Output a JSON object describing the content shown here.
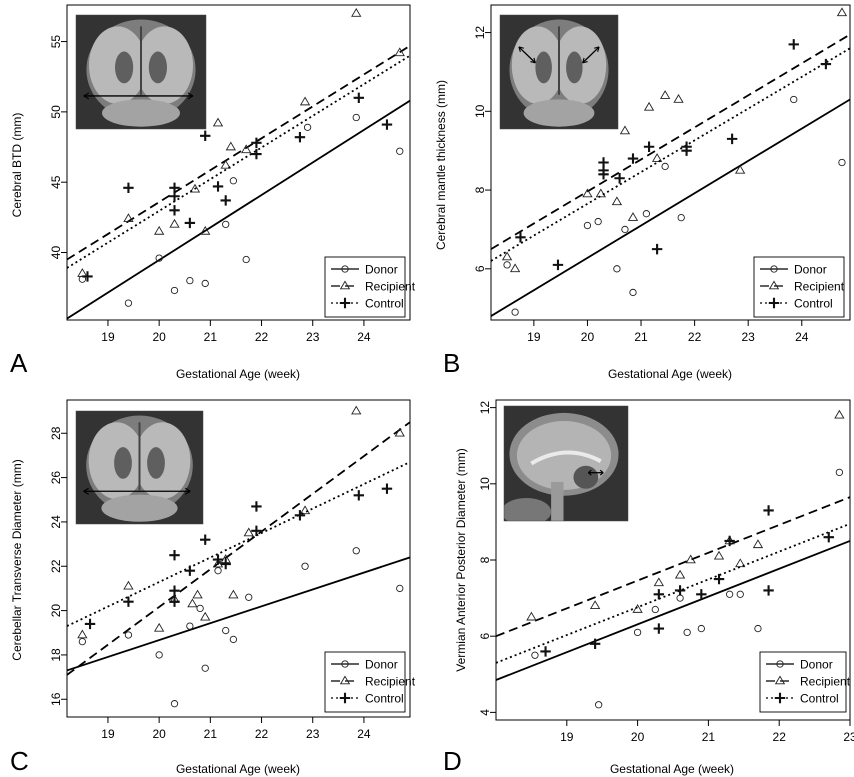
{
  "legend_entries": [
    {
      "name": "Donor",
      "dash": "",
      "marker": "circle"
    },
    {
      "name": "Recipient",
      "dash": "9,5",
      "marker": "triangle"
    },
    {
      "name": "Control",
      "dash": "2,3",
      "marker": "plus"
    }
  ],
  "chart_data": [
    {
      "panel_label": "A",
      "type": "scatter",
      "xlabel": "Gestational Age (week)",
      "ylabel": "Cerebral BTD (mm)",
      "xlim": [
        18.2,
        24.9
      ],
      "ylim": [
        35.2,
        57.6
      ],
      "xticks": [
        19,
        20,
        21,
        22,
        23,
        24
      ],
      "yticks": [
        40,
        45,
        50,
        55
      ],
      "legend_position": "bottom-right",
      "inset_image": "coronal fetal brain MRI with caliper arrow",
      "series": [
        {
          "name": "Donor",
          "marker": "circle",
          "line_style": "solid",
          "fit_line": [
            [
              18.2,
              35.3
            ],
            [
              24.9,
              50.8
            ]
          ],
          "points": [
            [
              18.5,
              38.1
            ],
            [
              19.4,
              36.4
            ],
            [
              20.0,
              39.6
            ],
            [
              20.3,
              37.3
            ],
            [
              20.6,
              38.0
            ],
            [
              20.9,
              37.8
            ],
            [
              21.3,
              42.0
            ],
            [
              21.45,
              45.1
            ],
            [
              21.7,
              39.5
            ],
            [
              22.9,
              48.9
            ],
            [
              23.85,
              49.6
            ],
            [
              24.7,
              47.2
            ]
          ]
        },
        {
          "name": "Recipient",
          "marker": "triangle",
          "line_style": "dashed",
          "fit_line": [
            [
              18.2,
              39.5
            ],
            [
              24.9,
              54.7
            ]
          ],
          "points": [
            [
              18.5,
              38.5
            ],
            [
              19.4,
              42.4
            ],
            [
              20.0,
              41.5
            ],
            [
              20.3,
              42.0
            ],
            [
              20.7,
              44.5
            ],
            [
              20.9,
              41.5
            ],
            [
              21.15,
              49.2
            ],
            [
              21.3,
              46.2
            ],
            [
              21.4,
              47.5
            ],
            [
              21.7,
              47.3
            ],
            [
              22.85,
              50.7
            ],
            [
              23.85,
              57.0
            ],
            [
              24.7,
              54.2
            ]
          ]
        },
        {
          "name": "Control",
          "marker": "plus",
          "line_style": "dotted",
          "fit_line": [
            [
              18.2,
              38.9
            ],
            [
              24.9,
              54.0
            ]
          ],
          "points": [
            [
              18.6,
              38.3
            ],
            [
              19.4,
              44.6
            ],
            [
              20.3,
              44.6
            ],
            [
              20.3,
              44.0
            ],
            [
              20.3,
              43.0
            ],
            [
              20.6,
              42.1
            ],
            [
              20.9,
              48.3
            ],
            [
              21.15,
              44.7
            ],
            [
              21.3,
              43.7
            ],
            [
              21.9,
              47.8
            ],
            [
              21.9,
              47.0
            ],
            [
              22.75,
              48.2
            ],
            [
              23.9,
              51.0
            ],
            [
              24.45,
              49.1
            ]
          ]
        }
      ]
    },
    {
      "panel_label": "B",
      "type": "scatter",
      "xlabel": "Gestational Age (week)",
      "ylabel": "Cerebral mantle thickness (mm)",
      "xlim": [
        18.2,
        24.9
      ],
      "ylim": [
        4.7,
        12.7
      ],
      "xticks": [
        19,
        20,
        21,
        22,
        23,
        24
      ],
      "yticks": [
        6,
        8,
        10,
        12
      ],
      "legend_position": "bottom-right",
      "inset_image": "coronal fetal brain MRI with two caliper arrows",
      "series": [
        {
          "name": "Donor",
          "marker": "circle",
          "line_style": "solid",
          "fit_line": [
            [
              18.2,
              4.8
            ],
            [
              24.9,
              10.3
            ]
          ],
          "points": [
            [
              18.5,
              6.1
            ],
            [
              18.65,
              4.9
            ],
            [
              20.0,
              7.1
            ],
            [
              20.2,
              7.2
            ],
            [
              20.55,
              6.0
            ],
            [
              20.7,
              7.0
            ],
            [
              20.85,
              5.4
            ],
            [
              21.1,
              7.4
            ],
            [
              21.45,
              8.6
            ],
            [
              21.75,
              7.3
            ],
            [
              23.85,
              10.3
            ],
            [
              24.75,
              8.7
            ]
          ]
        },
        {
          "name": "Recipient",
          "marker": "triangle",
          "line_style": "dashed",
          "fit_line": [
            [
              18.2,
              6.5
            ],
            [
              24.9,
              11.95
            ]
          ],
          "points": [
            [
              18.5,
              6.3
            ],
            [
              18.65,
              6.0
            ],
            [
              20.0,
              7.9
            ],
            [
              20.25,
              7.9
            ],
            [
              20.55,
              7.7
            ],
            [
              20.7,
              9.5
            ],
            [
              20.85,
              7.3
            ],
            [
              21.15,
              10.1
            ],
            [
              21.3,
              8.8
            ],
            [
              21.45,
              10.4
            ],
            [
              21.7,
              10.3
            ],
            [
              22.85,
              8.5
            ],
            [
              24.75,
              12.5
            ]
          ]
        },
        {
          "name": "Control",
          "marker": "plus",
          "line_style": "dotted",
          "fit_line": [
            [
              18.2,
              6.2
            ],
            [
              24.9,
              11.6
            ]
          ],
          "points": [
            [
              18.75,
              6.8
            ],
            [
              19.45,
              6.1
            ],
            [
              20.3,
              8.7
            ],
            [
              20.3,
              8.5
            ],
            [
              20.3,
              8.4
            ],
            [
              20.6,
              8.3
            ],
            [
              20.85,
              8.8
            ],
            [
              21.15,
              9.1
            ],
            [
              21.3,
              6.5
            ],
            [
              21.85,
              9.1
            ],
            [
              21.85,
              9.0
            ],
            [
              22.7,
              9.3
            ],
            [
              23.85,
              11.7
            ],
            [
              24.45,
              11.2
            ]
          ]
        }
      ]
    },
    {
      "panel_label": "C",
      "type": "scatter",
      "xlabel": "Gestational Age (week)",
      "ylabel": "Cerebellar Transverse Diameter (mm)",
      "xlim": [
        18.2,
        24.9
      ],
      "ylim": [
        15.2,
        29.5
      ],
      "xticks": [
        19,
        20,
        21,
        22,
        23,
        24
      ],
      "yticks": [
        16,
        18,
        20,
        22,
        24,
        26,
        28
      ],
      "legend_position": "bottom-right",
      "inset_image": "coronal fetal brain MRI with caliper arrow",
      "series": [
        {
          "name": "Donor",
          "marker": "circle",
          "line_style": "solid",
          "fit_line": [
            [
              18.2,
              17.3
            ],
            [
              24.9,
              22.4
            ]
          ],
          "points": [
            [
              18.5,
              18.6
            ],
            [
              19.4,
              18.9
            ],
            [
              20.0,
              18.0
            ],
            [
              20.3,
              15.8
            ],
            [
              20.6,
              19.3
            ],
            [
              20.8,
              20.1
            ],
            [
              20.9,
              17.4
            ],
            [
              21.15,
              21.8
            ],
            [
              21.3,
              19.1
            ],
            [
              21.45,
              18.7
            ],
            [
              21.75,
              20.6
            ],
            [
              22.85,
              22.0
            ],
            [
              23.85,
              22.7
            ],
            [
              24.7,
              21.0
            ]
          ]
        },
        {
          "name": "Recipient",
          "marker": "triangle",
          "line_style": "dashed",
          "fit_line": [
            [
              18.2,
              17.1
            ],
            [
              24.9,
              28.5
            ]
          ],
          "points": [
            [
              18.5,
              18.9
            ],
            [
              19.4,
              21.1
            ],
            [
              20.0,
              19.2
            ],
            [
              20.3,
              20.5
            ],
            [
              20.65,
              20.3
            ],
            [
              20.75,
              20.7
            ],
            [
              20.9,
              19.7
            ],
            [
              21.15,
              22.1
            ],
            [
              21.3,
              22.3
            ],
            [
              21.45,
              20.7
            ],
            [
              21.75,
              23.5
            ],
            [
              22.85,
              24.5
            ],
            [
              23.85,
              29.0
            ],
            [
              24.7,
              28.0
            ]
          ]
        },
        {
          "name": "Control",
          "marker": "plus",
          "line_style": "dotted",
          "fit_line": [
            [
              18.2,
              19.3
            ],
            [
              24.9,
              26.7
            ]
          ],
          "points": [
            [
              18.65,
              19.4
            ],
            [
              19.4,
              20.4
            ],
            [
              20.3,
              22.5
            ],
            [
              20.3,
              20.9
            ],
            [
              20.3,
              20.4
            ],
            [
              20.6,
              21.8
            ],
            [
              20.9,
              23.2
            ],
            [
              21.15,
              22.3
            ],
            [
              21.3,
              22.1
            ],
            [
              21.9,
              24.7
            ],
            [
              21.9,
              23.6
            ],
            [
              22.75,
              24.3
            ],
            [
              23.9,
              25.2
            ],
            [
              24.45,
              25.5
            ]
          ]
        }
      ]
    },
    {
      "panel_label": "D",
      "type": "scatter",
      "xlabel": "Gestational Age (week)",
      "ylabel": "Vermian Anterior Posterior Diameter (mm)",
      "xlim": [
        18.0,
        23.0
      ],
      "ylim": [
        3.8,
        12.2
      ],
      "xticks": [
        19,
        20,
        21,
        22,
        23
      ],
      "yticks": [
        4,
        6,
        8,
        10,
        12
      ],
      "legend_position": "bottom-right",
      "inset_image": "sagittal fetal brain MRI with caliper arrow",
      "series": [
        {
          "name": "Donor",
          "marker": "circle",
          "line_style": "solid",
          "fit_line": [
            [
              18.0,
              4.85
            ],
            [
              23.0,
              8.5
            ]
          ],
          "points": [
            [
              18.55,
              5.5
            ],
            [
              19.45,
              4.2
            ],
            [
              20.0,
              6.1
            ],
            [
              20.25,
              6.7
            ],
            [
              20.6,
              7.0
            ],
            [
              20.7,
              6.1
            ],
            [
              20.9,
              6.2
            ],
            [
              21.3,
              7.1
            ],
            [
              21.45,
              7.1
            ],
            [
              21.7,
              6.2
            ],
            [
              22.85,
              10.3
            ]
          ]
        },
        {
          "name": "Recipient",
          "marker": "triangle",
          "line_style": "dashed",
          "fit_line": [
            [
              18.0,
              6.0
            ],
            [
              23.0,
              9.65
            ]
          ],
          "points": [
            [
              18.5,
              6.5
            ],
            [
              19.4,
              6.8
            ],
            [
              20.0,
              6.7
            ],
            [
              20.3,
              7.4
            ],
            [
              20.6,
              7.6
            ],
            [
              20.75,
              8.0
            ],
            [
              21.15,
              8.1
            ],
            [
              21.3,
              8.5
            ],
            [
              21.45,
              7.9
            ],
            [
              21.7,
              8.4
            ],
            [
              22.85,
              11.8
            ]
          ]
        },
        {
          "name": "Control",
          "marker": "plus",
          "line_style": "dotted",
          "fit_line": [
            [
              18.0,
              5.3
            ],
            [
              23.0,
              8.95
            ]
          ],
          "points": [
            [
              18.7,
              5.6
            ],
            [
              19.4,
              5.8
            ],
            [
              20.3,
              7.1
            ],
            [
              20.3,
              6.2
            ],
            [
              20.6,
              7.2
            ],
            [
              20.9,
              7.1
            ],
            [
              21.15,
              7.5
            ],
            [
              21.3,
              8.5
            ],
            [
              21.85,
              9.3
            ],
            [
              21.85,
              7.2
            ],
            [
              22.7,
              8.6
            ]
          ]
        }
      ]
    }
  ]
}
